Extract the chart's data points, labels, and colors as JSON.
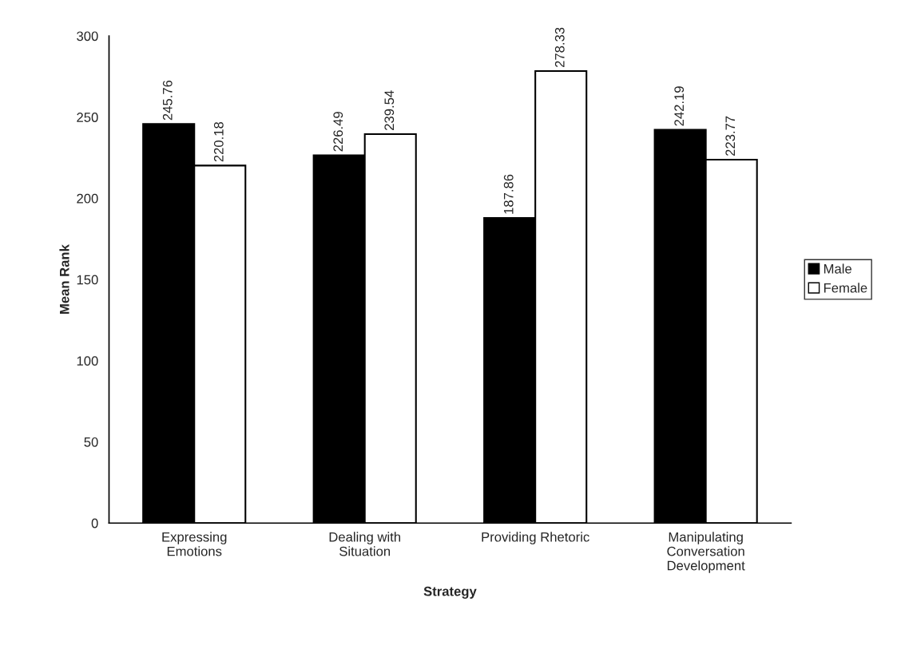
{
  "chart_data": {
    "type": "bar",
    "xlabel": "Strategy",
    "ylabel": "Mean Rank",
    "categories": [
      "Expressing\nEmotions",
      "Dealing with\nSituation",
      "Providing Rhetoric",
      "Manipulating\nConversation\nDevelopment"
    ],
    "series": [
      {
        "name": "Male",
        "color": "#000000",
        "values": [
          245.76,
          226.49,
          187.86,
          242.19
        ]
      },
      {
        "name": "Female",
        "color": "#ffffff",
        "values": [
          220.18,
          239.54,
          278.33,
          223.77
        ]
      }
    ],
    "ylim": [
      0,
      300
    ],
    "yticks": [
      0,
      50,
      100,
      150,
      200,
      250,
      300
    ],
    "data_labels": true,
    "legend": "right",
    "grid": false
  }
}
